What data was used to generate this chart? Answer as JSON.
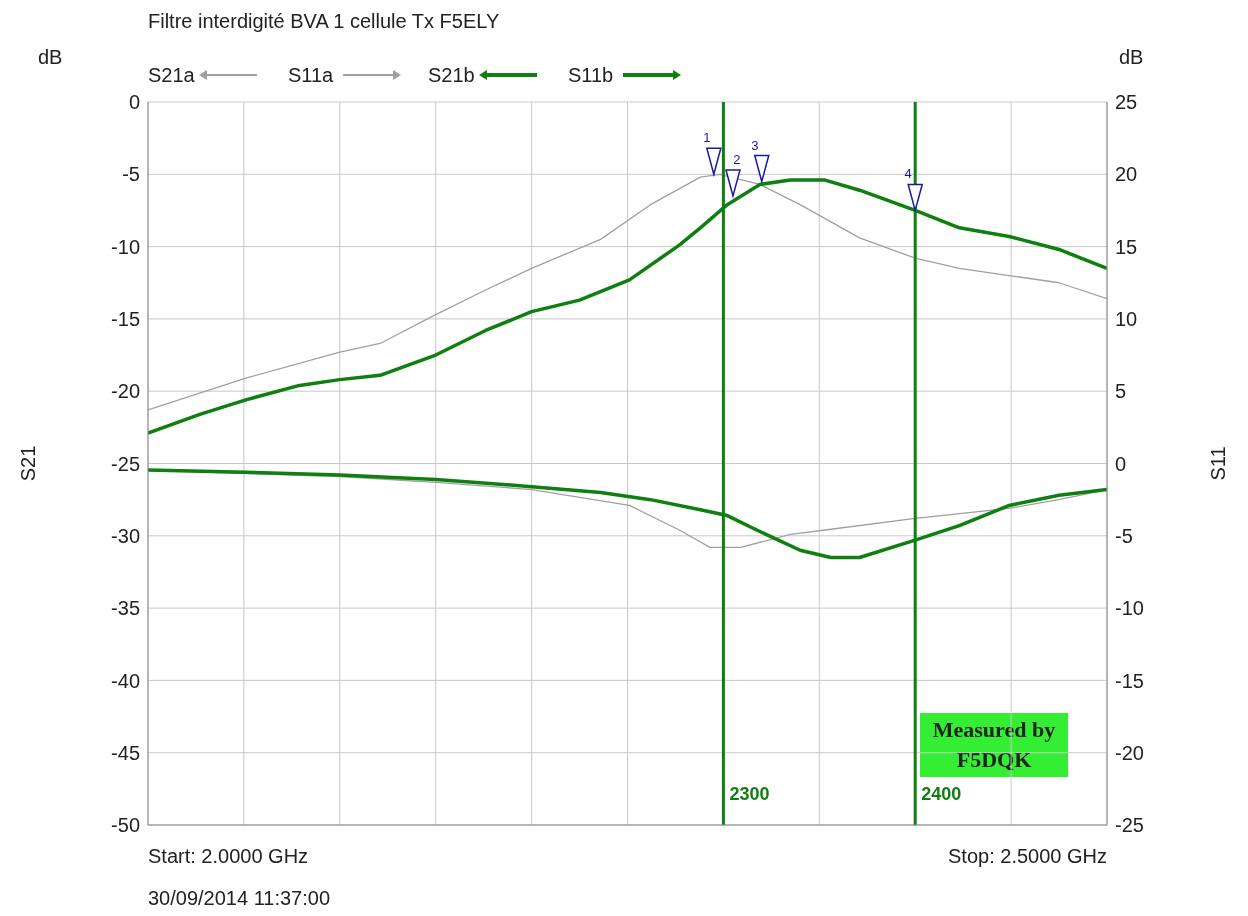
{
  "chart_data": {
    "type": "line",
    "title": "Filtre interdigité BVA 1 cellule Tx F5ELY",
    "ylabel": "S21",
    "y2label": "S11",
    "xlim": [
      2000,
      2500
    ],
    "xticks": [
      {
        "value": 2000,
        "label": null
      },
      {
        "value": 2050,
        "label": null
      },
      {
        "value": 2100,
        "label": null
      },
      {
        "value": 2150,
        "label": null
      },
      {
        "value": 2200,
        "label": null
      },
      {
        "value": 2250,
        "label": null
      },
      {
        "value": 2350,
        "label": null
      },
      {
        "value": 2450,
        "label": null
      },
      {
        "value": 2500,
        "label": null
      }
    ],
    "ylim": [
      -50,
      0
    ],
    "yticks": [
      -50,
      -45,
      -40,
      -35,
      -30,
      -25,
      -20,
      -15,
      -10,
      -5,
      0
    ],
    "y2lim": [
      -25,
      25
    ],
    "y2ticks": [
      -25,
      -20,
      -15,
      -10,
      -5,
      0,
      5,
      10,
      15,
      20,
      25
    ],
    "grid": true,
    "legend": "top left",
    "marker": "none",
    "line_style": "solid",
    "series": [
      {
        "name": "S21a",
        "color": "#a0a0a0",
        "axis": "y",
        "x": [
          2000,
          2051,
          2100,
          2121,
          2150,
          2176,
          2200,
          2236,
          2262,
          2288,
          2298,
          2319,
          2340,
          2371,
          2400,
          2423,
          2449,
          2475,
          2500
        ],
        "values": [
          -21.3,
          -19.1,
          -17.3,
          -16.7,
          -14.7,
          -13,
          -11.5,
          -9.5,
          -7.1,
          -5.2,
          -5,
          -5.7,
          -7.1,
          -9.4,
          -10.8,
          -11.5,
          -12,
          -12.5,
          -13.6
        ]
      },
      {
        "name": "S11a",
        "color": "#a0a0a0",
        "axis": "y2",
        "x": [
          2000,
          2051,
          2100,
          2150,
          2200,
          2251,
          2277,
          2293,
          2309,
          2335,
          2353,
          2400,
          2449,
          2475,
          2500
        ],
        "values": [
          -0.45,
          -0.7,
          -0.9,
          -1.3,
          -1.8,
          -2.9,
          -4.6,
          -5.8,
          -5.8,
          -4.9,
          -4.6,
          -3.8,
          -3.1,
          -2.5,
          -1.8
        ]
      },
      {
        "name": "S21b",
        "color": "#0f7f0f",
        "axis": "y",
        "x": [
          2000,
          2027,
          2051,
          2079,
          2100,
          2121,
          2150,
          2176,
          2200,
          2225,
          2251,
          2277,
          2288,
          2302,
          2319,
          2335,
          2353,
          2371,
          2400,
          2423,
          2449,
          2475,
          2500
        ],
        "values": [
          -22.9,
          -21.6,
          -20.6,
          -19.6,
          -19.2,
          -18.9,
          -17.5,
          -15.8,
          -14.5,
          -13.7,
          -12.3,
          -9.9,
          -8.7,
          -7.1,
          -5.7,
          -5.4,
          -5.4,
          -6.1,
          -7.5,
          -8.7,
          -9.3,
          -10.2,
          -11.5
        ]
      },
      {
        "name": "S11b",
        "color": "#0f7f0f",
        "axis": "y2",
        "x": [
          2000,
          2051,
          2100,
          2150,
          2200,
          2236,
          2262,
          2288,
          2302,
          2319,
          2340,
          2356,
          2371,
          2400,
          2423,
          2449,
          2475,
          2500
        ],
        "values": [
          -0.45,
          -0.6,
          -0.8,
          -1.1,
          -1.6,
          -2,
          -2.5,
          -3.2,
          -3.6,
          -4.7,
          -6,
          -6.5,
          -6.5,
          -5.3,
          -4.3,
          -2.9,
          -2.2,
          -1.8
        ]
      }
    ],
    "ref_lines": [
      {
        "axis": "x",
        "value": 2300,
        "label": "2300",
        "color": "#0f7f0f"
      },
      {
        "axis": "x",
        "value": 2400,
        "label": "2400",
        "color": "#0f7f0f"
      }
    ],
    "annotations": [
      "dB",
      "dB",
      "Start: 2.0000 GHz",
      "Stop: 2.5000 GHz",
      "30/09/2014 11:37:00",
      "Measured by F5DQK",
      {
        "text": "1",
        "x": 2295,
        "y": -5
      },
      {
        "text": "2",
        "x": 2305,
        "y": -6.5
      },
      {
        "text": "3",
        "x": 2320,
        "y": -5.5
      },
      {
        "text": "4",
        "x": 2400,
        "y": -7.5
      }
    ]
  }
}
